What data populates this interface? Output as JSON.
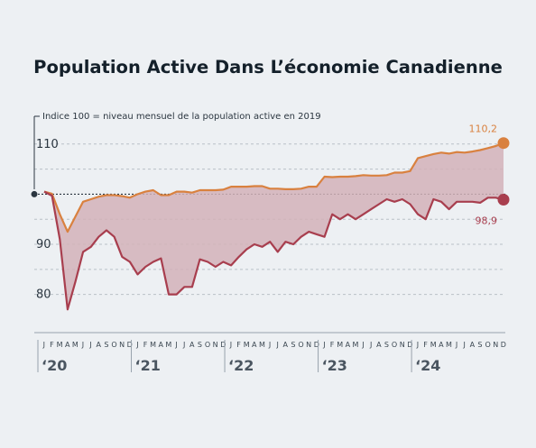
{
  "chart_data": {
    "type": "area",
    "title": "Population Active Dans L’économie Canadienne",
    "note": "Indice 100 = niveau mensuel de la population active en 2019",
    "baseline": 100,
    "ylim": [
      74,
      115
    ],
    "yticks": [
      80,
      90,
      110
    ],
    "grid": true,
    "month_letters": [
      "J",
      "F",
      "M",
      "A",
      "M",
      "J",
      "J",
      "A",
      "S",
      "O",
      "N",
      "D"
    ],
    "years": [
      "‘20",
      "‘21",
      "‘22",
      "‘23",
      "‘24"
    ],
    "x_start": "2020-01",
    "series": [
      {
        "color": "#d9813f",
        "end_label": "110,2",
        "values": [
          100.5,
          100.1,
          96.0,
          92.5,
          95.5,
          98.5,
          99.0,
          99.5,
          99.8,
          99.8,
          99.6,
          99.3,
          100.0,
          100.5,
          100.8,
          99.8,
          99.8,
          100.5,
          100.5,
          100.3,
          100.8,
          100.8,
          100.8,
          100.9,
          101.5,
          101.5,
          101.5,
          101.6,
          101.6,
          101.1,
          101.1,
          101.0,
          101.0,
          101.1,
          101.5,
          101.5,
          103.5,
          103.4,
          103.5,
          103.5,
          103.6,
          103.8,
          103.7,
          103.7,
          103.8,
          104.3,
          104.3,
          104.6,
          107.2,
          107.6,
          108.0,
          108.3,
          108.1,
          108.4,
          108.3,
          108.5,
          108.8,
          109.2,
          109.6,
          110.2
        ]
      },
      {
        "color": "#a83e4e",
        "end_label": "98,9",
        "values": [
          100.5,
          99.7,
          91.0,
          77.0,
          82.5,
          88.5,
          89.5,
          91.5,
          92.8,
          91.5,
          87.5,
          86.5,
          84.0,
          85.5,
          86.5,
          87.2,
          80.0,
          80.0,
          81.5,
          81.5,
          87.0,
          86.5,
          85.5,
          86.5,
          85.8,
          87.5,
          89.0,
          90.0,
          89.5,
          90.5,
          88.5,
          90.5,
          90.0,
          91.5,
          92.5,
          92.0,
          91.5,
          96.0,
          95.0,
          96.0,
          95.0,
          96.0,
          97.0,
          98.0,
          99.0,
          98.5,
          99.0,
          98.0,
          96.0,
          95.0,
          99.0,
          98.5,
          97.0,
          98.5,
          98.5,
          98.5,
          98.3,
          99.3,
          99.3,
          98.9
        ]
      }
    ]
  }
}
